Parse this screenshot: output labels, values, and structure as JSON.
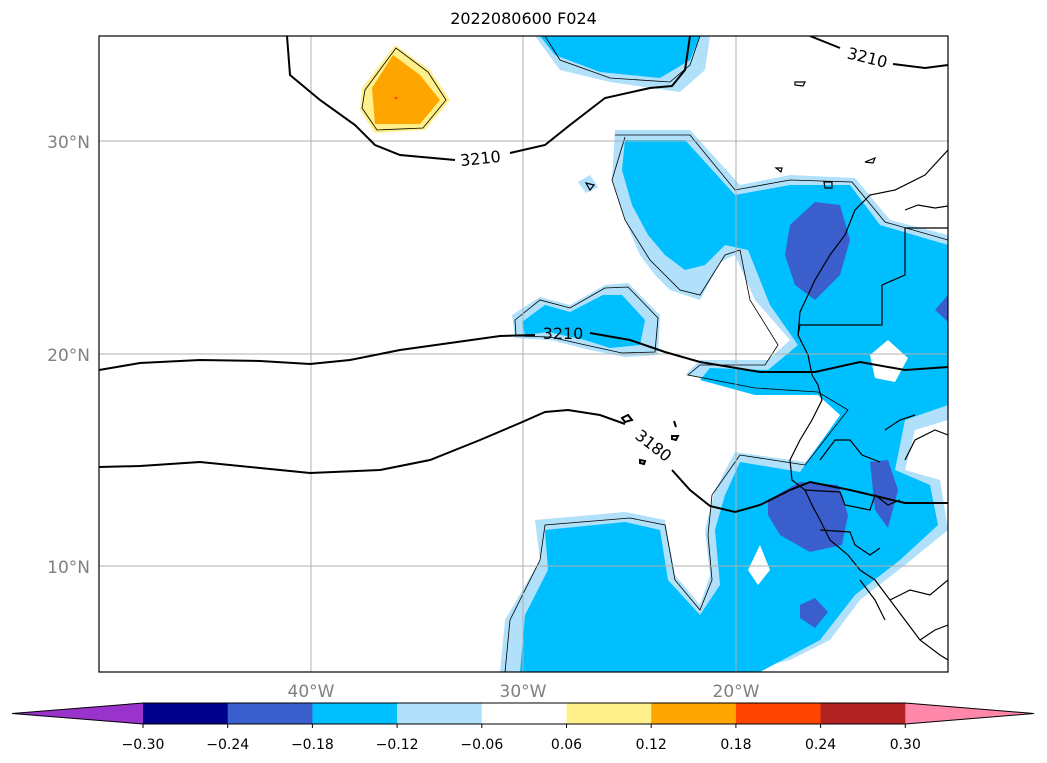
{
  "title": "2022080600 F024",
  "map": {
    "lat_labels": [
      "30°N",
      "20°N",
      "10°N"
    ],
    "lon_labels": [
      "40°W",
      "30°W",
      "20°W"
    ],
    "contour_labels": [
      "3210",
      "3210",
      "3210",
      "3180"
    ]
  },
  "colorbar": {
    "colors": [
      "#9933cc",
      "#00008b",
      "#3a5fcd",
      "#00bfff",
      "#b0e0fa",
      "#ffffff",
      "#fff08c",
      "#ffa500",
      "#ff4500",
      "#b22222",
      "#ff88aa"
    ],
    "tick_labels": [
      "−0.30",
      "−0.24",
      "−0.18",
      "−0.12",
      "−0.06",
      "0.06",
      "0.12",
      "0.18",
      "0.24",
      "0.30"
    ]
  }
}
